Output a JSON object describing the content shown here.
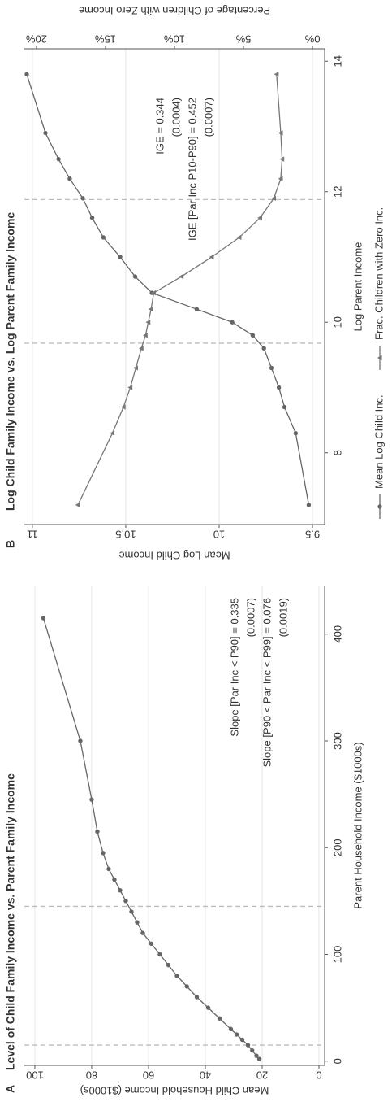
{
  "chart_data": [
    {
      "type": "line",
      "panel": "A",
      "title": "Level of Child Family Income vs. Parent Family Income",
      "xlabel": "Parent Household Income ($1000s)",
      "ylabel": "Mean Child Household Income ($1000s)",
      "x": [
        2,
        5,
        10,
        15,
        20,
        25,
        30,
        40,
        50,
        60,
        70,
        80,
        90,
        100,
        110,
        120,
        130,
        140,
        150,
        160,
        170,
        180,
        195,
        215,
        245,
        300,
        415
      ],
      "series": [
        {
          "color": "#666666",
          "marker": "circle",
          "values": [
            21,
            22,
            23.5,
            25,
            27,
            29,
            31,
            35,
            39,
            43,
            46.5,
            50,
            53,
            56,
            59,
            62,
            64,
            66,
            68,
            70,
            72,
            74,
            76,
            78,
            80,
            84,
            97
          ]
        }
      ],
      "xlim": [
        -4,
        445.5
      ],
      "xticks": [
        0,
        100,
        200,
        300,
        400
      ],
      "ylim": [
        -2,
        103.7
      ],
      "yticks": [
        0,
        20,
        40,
        60,
        80,
        100
      ],
      "vlines": [
        15,
        145
      ],
      "grid": true,
      "annotations": [
        "Slope [Par Inc < P90] = 0.335",
        "(0.0007)",
        "Slope [P90 < Par Inc < P99] = 0.076",
        "(0.0019)"
      ]
    },
    {
      "type": "line",
      "panel": "B",
      "title": "Log Child Family Income vs. Log Parent Family Income",
      "xlabel": "Log Parent Income",
      "ylabel": "Mean Log Child Income",
      "y2label": "Percentage of Children with Zero Income",
      "x": [
        7.2,
        8.3,
        8.7,
        9.0,
        9.3,
        9.6,
        9.8,
        10.0,
        10.2,
        10.45,
        10.7,
        11.0,
        11.3,
        11.6,
        11.9,
        12.2,
        12.5,
        12.9,
        13.8
      ],
      "series": [
        {
          "name": "Mean Log Child Inc.",
          "color": "#666666",
          "marker": "circle",
          "values": [
            9.52,
            9.59,
            9.65,
            9.68,
            9.72,
            9.76,
            9.82,
            9.93,
            10.12,
            10.36,
            10.45,
            10.53,
            10.62,
            10.68,
            10.73,
            10.8,
            10.86,
            10.93,
            11.03
          ]
        },
        {
          "name": "Frac. Children with Zero Inc.",
          "color": "#777777",
          "marker": "triangle",
          "axis": "y2",
          "values": [
            17,
            14.5,
            13.7,
            13.2,
            12.8,
            12.4,
            12.1,
            11.9,
            11.7,
            11.5,
            9.5,
            7.3,
            5.3,
            3.8,
            2.8,
            2.3,
            2.2,
            2.3,
            2.6
          ]
        }
      ],
      "xlim": [
        6.9,
        14.19
      ],
      "xticks": [
        8,
        10,
        12,
        14
      ],
      "ylim": [
        9.435,
        11.043
      ],
      "yticks": [
        9.5,
        10,
        10.5,
        11
      ],
      "y2lim": [
        -0.88,
        20.88
      ],
      "y2ticks": [
        {
          "value": 0,
          "label": "0%"
        },
        {
          "value": 5,
          "label": "5%"
        },
        {
          "value": 10,
          "label": "10%"
        },
        {
          "value": 15,
          "label": "15%"
        },
        {
          "value": 20,
          "label": "20%"
        }
      ],
      "vlines": [
        9.68,
        11.88
      ],
      "grid": true,
      "annotations": [
        "IGE = 0.344",
        "(0.0004)",
        "IGE [Par Inc P10-P90] = 0.452",
        "(0.0007)"
      ]
    }
  ]
}
